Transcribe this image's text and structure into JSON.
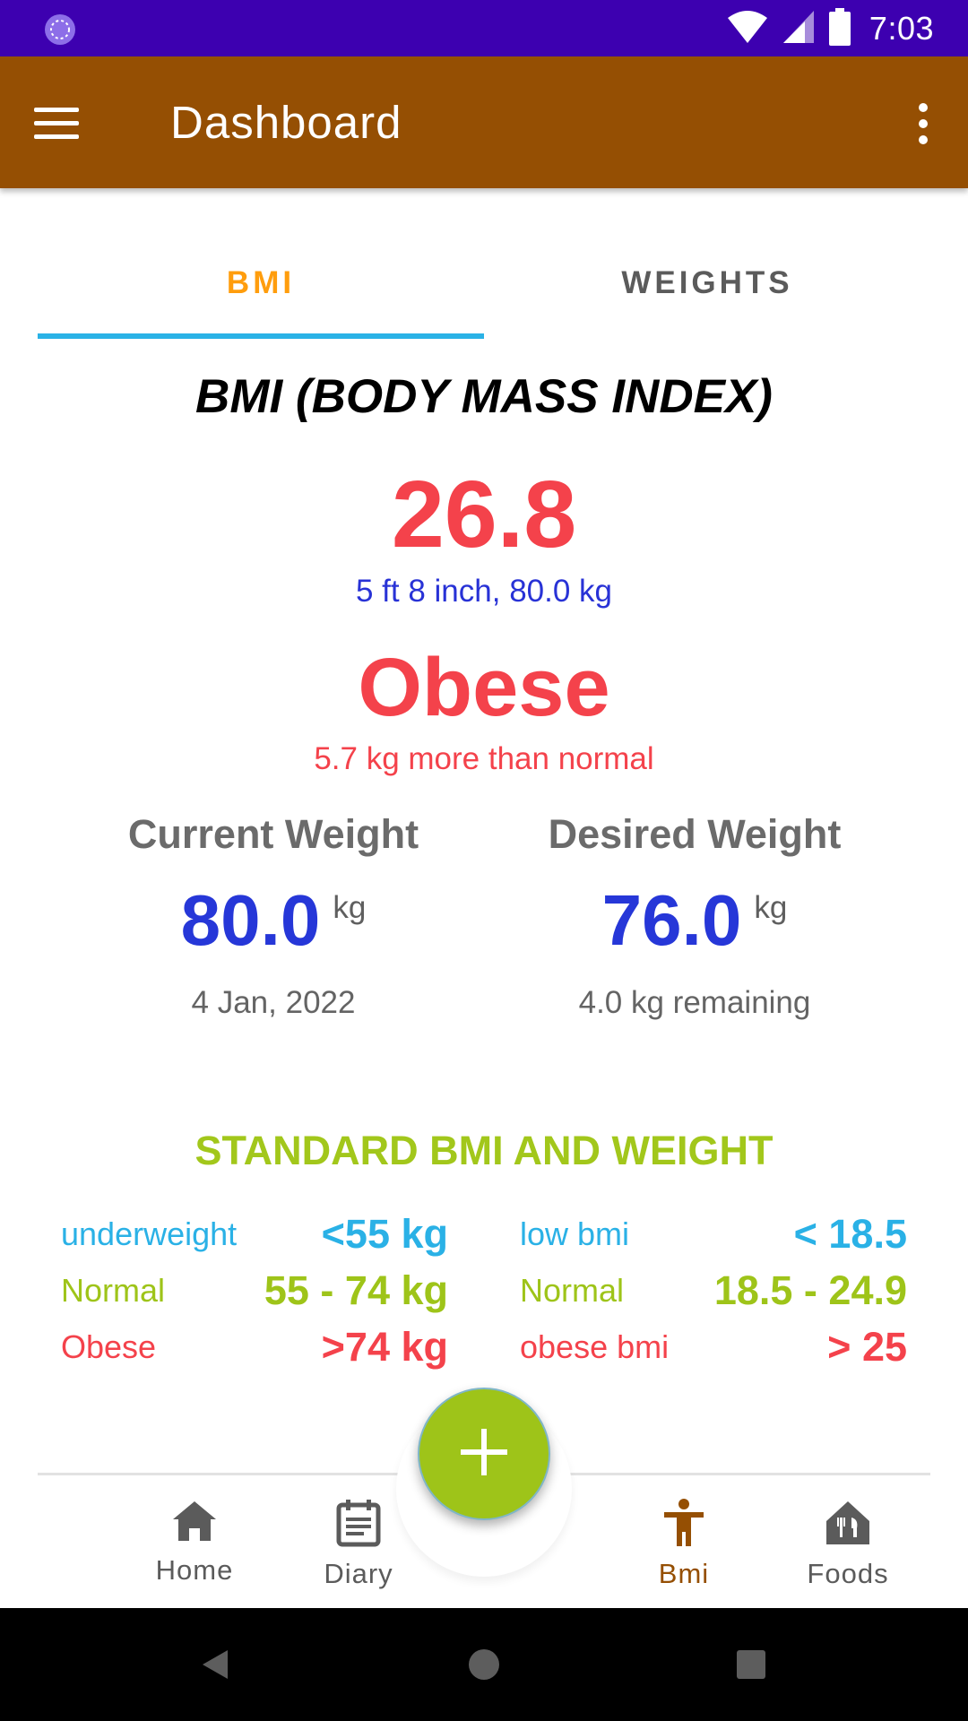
{
  "status_bar": {
    "time": "7:03"
  },
  "app_bar": {
    "title": "Dashboard",
    "colors": {
      "background": "#954f03"
    }
  },
  "tabs": [
    {
      "label": "BMI",
      "active": true
    },
    {
      "label": "WEIGHTS",
      "active": false
    }
  ],
  "bmi": {
    "heading": "BMI (BODY MASS INDEX)",
    "value": "26.8",
    "measures": "5 ft 8 inch, 80.0 kg",
    "status": "Obese",
    "difference": "5.7 kg more than normal"
  },
  "current_weight": {
    "label": "Current Weight",
    "value": "80.0",
    "unit": "kg",
    "sub": "4 Jan, 2022"
  },
  "desired_weight": {
    "label": "Desired Weight",
    "value": "76.0",
    "unit": "kg",
    "sub": "4.0 kg remaining"
  },
  "standard": {
    "heading": "STANDARD BMI AND WEIGHT",
    "rows": [
      {
        "weight_label": "underweight",
        "weight_value": "<55 kg",
        "bmi_label": "low bmi",
        "bmi_value": "< 18.5",
        "color": "#2ab1e6"
      },
      {
        "weight_label": "Normal",
        "weight_value": "55 - 74 kg",
        "bmi_label": "Normal",
        "bmi_value": "18.5 - 24.9",
        "color": "#9ec419"
      },
      {
        "weight_label": "Obese",
        "weight_value": ">74 kg",
        "bmi_label": "obese bmi",
        "bmi_value": "> 25",
        "color": "#f4424b"
      }
    ]
  },
  "bottom_nav": {
    "items": [
      {
        "label": "Home",
        "icon": "home-icon"
      },
      {
        "label": "Diary",
        "icon": "diary-icon"
      },
      {
        "label": "Bmi",
        "icon": "person-icon",
        "active": true
      },
      {
        "label": "Foods",
        "icon": "restaurant-icon"
      }
    ],
    "fab_icon": "plus-icon"
  }
}
